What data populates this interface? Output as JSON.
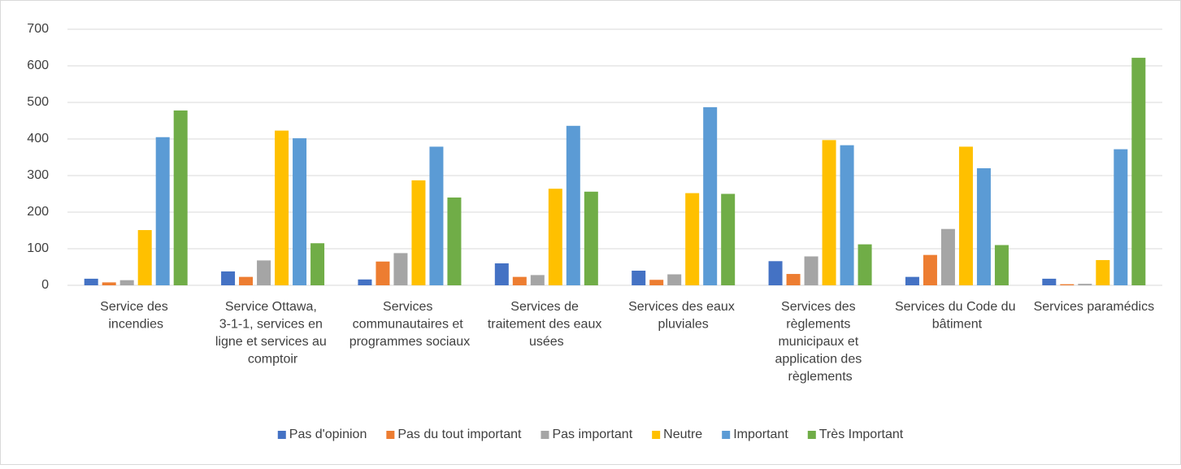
{
  "chart_data": {
    "type": "bar",
    "categories": [
      "Service des incendies",
      "Service Ottawa, 3-1-1, services en ligne et services au comptoir",
      "Services communautaires et programmes sociaux",
      "Services de traitement des eaux usées",
      "Services des eaux pluviales",
      "Services des règlements municipaux et application des règlements",
      "Services du Code du bâtiment",
      "Services paramédics"
    ],
    "series": [
      {
        "name": "Pas d'opinion",
        "color": "#4472c4",
        "values": [
          18,
          38,
          16,
          60,
          40,
          66,
          23,
          18
        ]
      },
      {
        "name": "Pas du tout important",
        "color": "#ed7d31",
        "values": [
          8,
          23,
          65,
          23,
          15,
          31,
          83,
          3
        ]
      },
      {
        "name": "Pas important",
        "color": "#a5a5a5",
        "values": [
          14,
          68,
          88,
          28,
          30,
          79,
          154,
          4
        ]
      },
      {
        "name": "Neutre",
        "color": "#ffc000",
        "values": [
          151,
          423,
          287,
          264,
          252,
          397,
          379,
          69
        ]
      },
      {
        "name": "Important",
        "color": "#5b9bd5",
        "values": [
          405,
          402,
          379,
          436,
          487,
          383,
          320,
          372
        ]
      },
      {
        "name": "Très Important",
        "color": "#70ad47",
        "values": [
          478,
          115,
          240,
          256,
          250,
          112,
          110,
          622
        ]
      }
    ],
    "ylim": [
      0,
      700
    ],
    "yticks": [
      0,
      100,
      200,
      300,
      400,
      500,
      600,
      700
    ],
    "grid": true,
    "legend": "bottom"
  }
}
